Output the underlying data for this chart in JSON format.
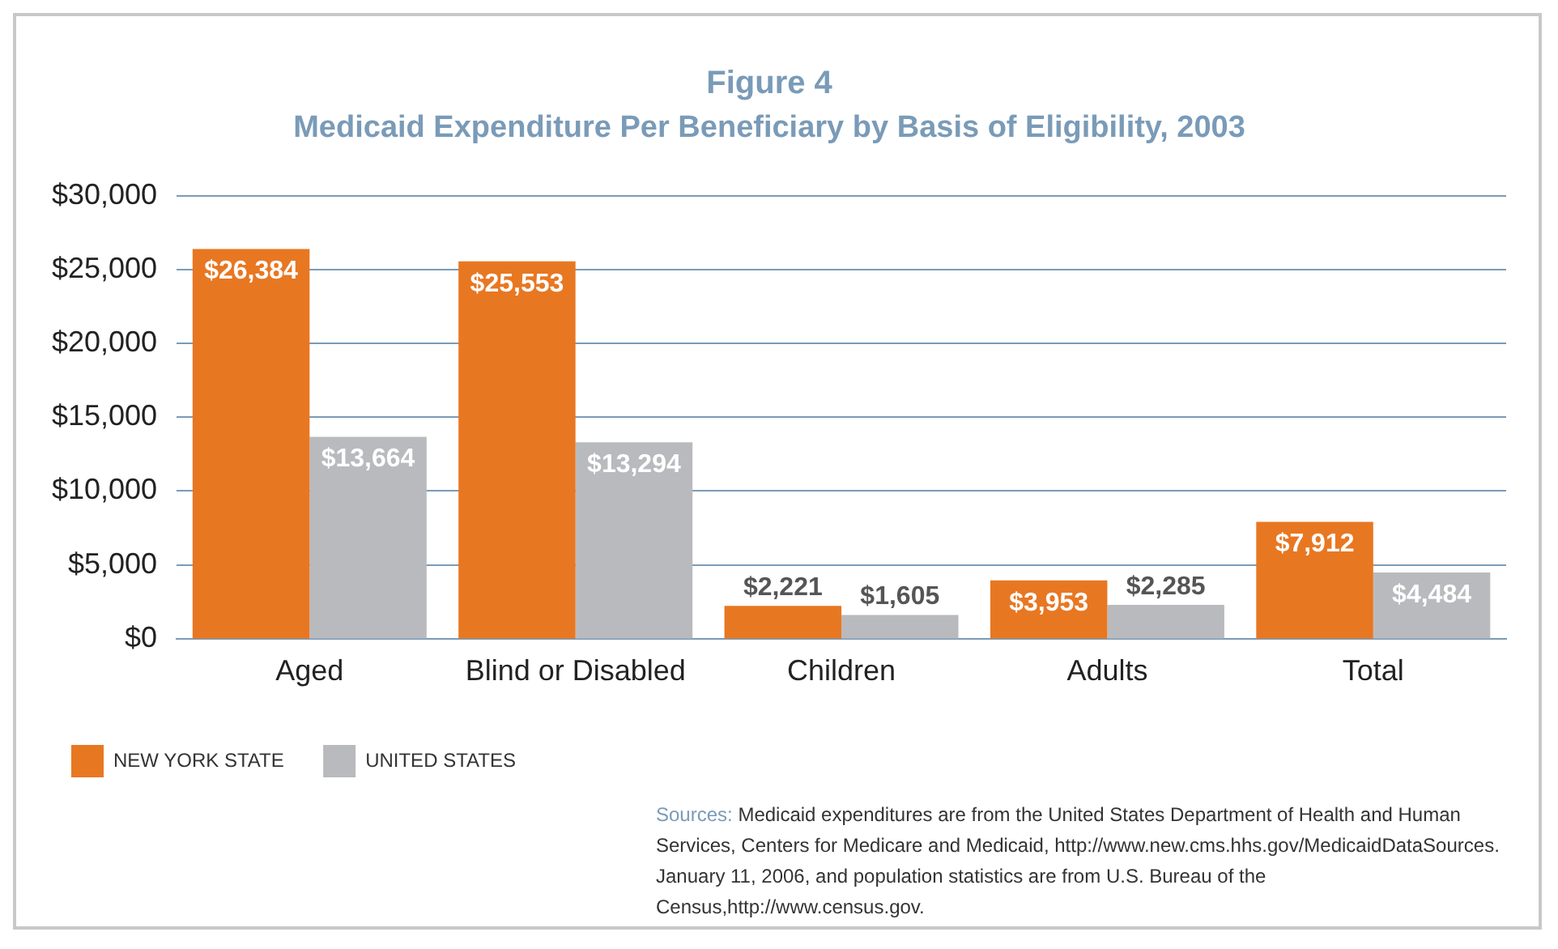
{
  "chart_data": {
    "type": "bar",
    "title": "Figure 4",
    "subtitle": "Medicaid Expenditure Per Beneficiary by Basis of Eligibility, 2003",
    "categories": [
      "Aged",
      "Blind or Disabled",
      "Children",
      "Adults",
      "Total"
    ],
    "series": [
      {
        "name": "NEW YORK STATE",
        "color": "#e87722",
        "values": [
          26384,
          25553,
          2221,
          3953,
          7912
        ],
        "value_labels": [
          "$26,384",
          "$25,553",
          "$2,221",
          "$3,953",
          "$7,912"
        ]
      },
      {
        "name": "UNITED STATES",
        "color": "#b9babd",
        "values": [
          13664,
          13294,
          1605,
          2285,
          4484
        ],
        "value_labels": [
          "$13,664",
          "$13,294",
          "$1,605",
          "$2,285",
          "$4,484"
        ]
      }
    ],
    "ylim": [
      0,
      30000
    ],
    "yticks": [
      {
        "value": 0,
        "label": "$0"
      },
      {
        "value": 5000,
        "label": "$5,000"
      },
      {
        "value": 10000,
        "label": "$10,000"
      },
      {
        "value": 15000,
        "label": "$15,000"
      },
      {
        "value": 20000,
        "label": "$20,000"
      },
      {
        "value": 25000,
        "label": "$25,000"
      },
      {
        "value": 30000,
        "label": "$30,000"
      }
    ],
    "grid": "y",
    "legend": "bottom left",
    "annotations": [
      "Sources: Medicaid expenditures are from the United States Department of Health and Human Services, Centers for Medicare and Medicaid, http://www.new.cms.hhs.gov/MedicaidDataSources. January 11, 2006, and population statistics are from U.S. Bureau of the Census,http://www.census.gov."
    ]
  }
}
